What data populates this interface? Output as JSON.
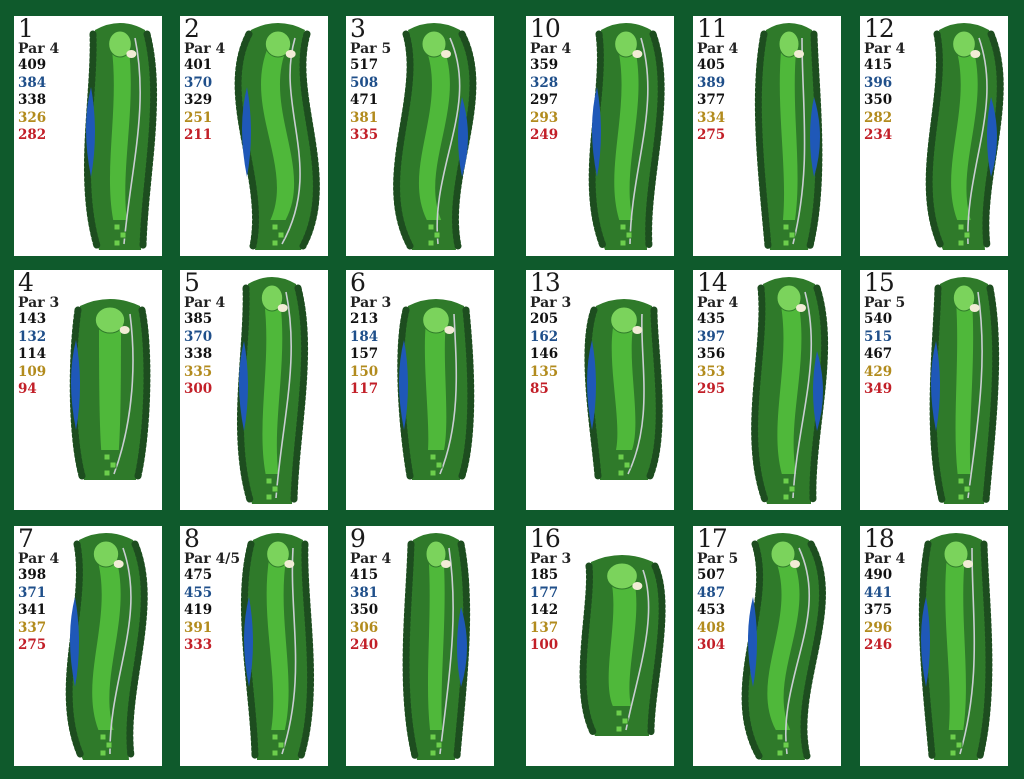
{
  "colors": {
    "background": "#0f5a2c",
    "card": "#ffffff",
    "black_tee": "#111111",
    "blue_tee": "#1f4f8a",
    "white_tee": "#111111",
    "gold_tee": "#b28b1d",
    "red_tee": "#c21f28"
  },
  "holes": [
    {
      "number": "1",
      "par": "Par 4",
      "yardages": [
        "409",
        "384",
        "338",
        "326",
        "282"
      ]
    },
    {
      "number": "2",
      "par": "Par 4",
      "yardages": [
        "401",
        "370",
        "329",
        "251",
        "211"
      ]
    },
    {
      "number": "3",
      "par": "Par 5",
      "yardages": [
        "517",
        "508",
        "471",
        "381",
        "335"
      ]
    },
    {
      "number": "10",
      "par": "Par 4",
      "yardages": [
        "359",
        "328",
        "297",
        "293",
        "249"
      ]
    },
    {
      "number": "11",
      "par": "Par 4",
      "yardages": [
        "405",
        "389",
        "377",
        "334",
        "275"
      ]
    },
    {
      "number": "12",
      "par": "Par 4",
      "yardages": [
        "415",
        "396",
        "350",
        "282",
        "234"
      ]
    },
    {
      "number": "4",
      "par": "Par 3",
      "yardages": [
        "143",
        "132",
        "114",
        "109",
        "94"
      ]
    },
    {
      "number": "5",
      "par": "Par 4",
      "yardages": [
        "385",
        "370",
        "338",
        "335",
        "300"
      ]
    },
    {
      "number": "6",
      "par": "Par 3",
      "yardages": [
        "213",
        "184",
        "157",
        "150",
        "117"
      ]
    },
    {
      "number": "13",
      "par": "Par 3",
      "yardages": [
        "205",
        "162",
        "146",
        "135",
        "85"
      ]
    },
    {
      "number": "14",
      "par": "Par 4",
      "yardages": [
        "435",
        "397",
        "356",
        "353",
        "295"
      ]
    },
    {
      "number": "15",
      "par": "Par 5",
      "yardages": [
        "540",
        "515",
        "467",
        "429",
        "349"
      ]
    },
    {
      "number": "7",
      "par": "Par 4",
      "yardages": [
        "398",
        "371",
        "341",
        "337",
        "275"
      ]
    },
    {
      "number": "8",
      "par": "Par 4/5",
      "yardages": [
        "475",
        "455",
        "419",
        "391",
        "333"
      ]
    },
    {
      "number": "9",
      "par": "Par 4",
      "yardages": [
        "415",
        "381",
        "350",
        "306",
        "240"
      ]
    },
    {
      "number": "16",
      "par": "Par 3",
      "yardages": [
        "185",
        "177",
        "142",
        "137",
        "100"
      ]
    },
    {
      "number": "17",
      "par": "Par 5",
      "yardages": [
        "507",
        "487",
        "453",
        "408",
        "304"
      ]
    },
    {
      "number": "18",
      "par": "Par 4",
      "yardages": [
        "490",
        "441",
        "375",
        "296",
        "246"
      ]
    }
  ]
}
